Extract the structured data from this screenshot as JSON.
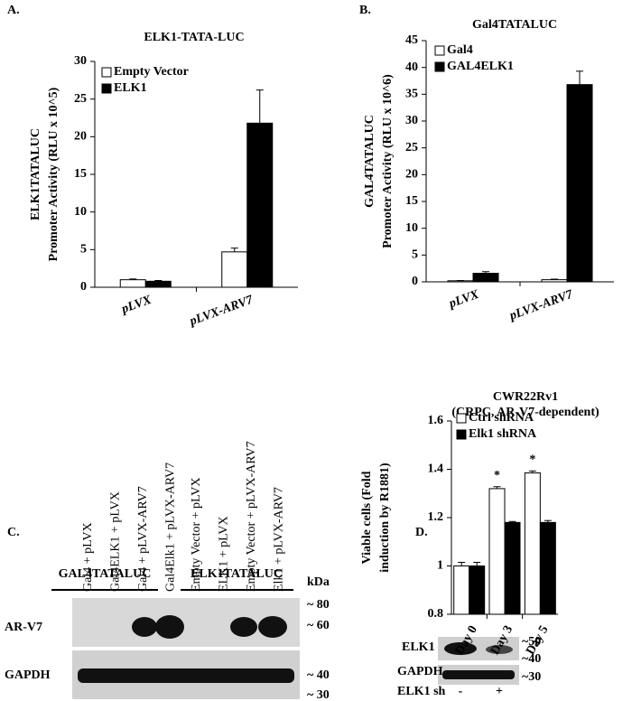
{
  "panel_labels": [
    "A.",
    "B.",
    "C.",
    "D."
  ],
  "chart_data": [
    {
      "type": "bar",
      "title": [
        "ELK1-TATA-LUC"
      ],
      "ylabel": [
        "ELK1TATALUC",
        "Promoter Activity (RLU x 10^5)"
      ],
      "categories": [
        "pLVX",
        "pLVX-ARV7"
      ],
      "series": [
        {
          "name": "Empty Vector",
          "color": "#ffffff",
          "values": [
            1.0,
            4.7
          ],
          "errors": [
            0.1,
            0.5
          ]
        },
        {
          "name": "ELK1",
          "color": "#000000",
          "values": [
            0.8,
            21.8
          ],
          "errors": [
            0.1,
            4.4
          ]
        }
      ],
      "ylim": [
        0,
        30
      ],
      "yticks": [
        0,
        5,
        10,
        15,
        20,
        25,
        30
      ],
      "legend": "upper-left"
    },
    {
      "type": "bar",
      "title": [
        "Gal4TATALUC"
      ],
      "ylabel": [
        "GAL4TATALUC",
        "Promoter Activity (RLU x 10^6)"
      ],
      "categories": [
        "pLVX",
        "pLVX-ARV7"
      ],
      "series": [
        {
          "name": "Gal4",
          "color": "#ffffff",
          "values": [
            0.2,
            0.4
          ],
          "errors": [
            0.05,
            0.1
          ]
        },
        {
          "name": "GAL4ELK1",
          "color": "#000000",
          "values": [
            1.6,
            36.8
          ],
          "errors": [
            0.3,
            2.5
          ]
        }
      ],
      "ylim": [
        0,
        45
      ],
      "yticks": [
        0,
        5,
        10,
        15,
        20,
        25,
        30,
        35,
        40,
        45
      ],
      "legend": "upper-left"
    },
    {
      "type": "bar",
      "title": [
        "CWR22Rv1",
        "(CRPC, AR-V7-dependent)"
      ],
      "ylabel": [
        "Viable cells (Fold",
        "induction by R1881)"
      ],
      "categories": [
        "Day 0",
        "Day 3",
        "Day 5"
      ],
      "series": [
        {
          "name": "Ctrl shRNA",
          "color": "#ffffff",
          "values": [
            1.0,
            1.32,
            1.385
          ],
          "errors": [
            0.015,
            0.008,
            0.008
          ]
        },
        {
          "name": "Elk1 shRNA",
          "color": "#000000",
          "values": [
            1.0,
            1.18,
            1.18
          ],
          "errors": [
            0.015,
            0.004,
            0.008
          ]
        }
      ],
      "ylim": [
        0.8,
        1.6
      ],
      "yticks": [
        0.8,
        1,
        1.2,
        1.4,
        1.6
      ],
      "legend": "upper-left",
      "annotations": [
        "*",
        "*"
      ]
    }
  ],
  "blot_c": {
    "groups": [
      "GAL4TATALUC",
      "ELK1TATALUC"
    ],
    "lanes": [
      "Gal4 + pLVX",
      "Gal4ELK1 + pLVX",
      "Gal4 + pLVX-ARV7",
      "Gal4Elk1 + pLVX-ARV7",
      "Empty Vector + pLVX",
      "ELK1 + pLVX",
      "Empty Vector + pLVX-ARV7",
      "Elk1 + pLVX-ARV7"
    ],
    "rows": [
      "AR-V7",
      "GAPDH"
    ],
    "unit": "kDa",
    "markers": [
      "~ 80",
      "~ 60",
      "~ 40",
      "~ 30"
    ]
  },
  "blot_d": {
    "rows": [
      "ELK1",
      "GAPDH"
    ],
    "markers": [
      "~50",
      "~40",
      "~30"
    ],
    "treatment": "ELK1 sh",
    "lanes": [
      "-",
      "+"
    ]
  }
}
